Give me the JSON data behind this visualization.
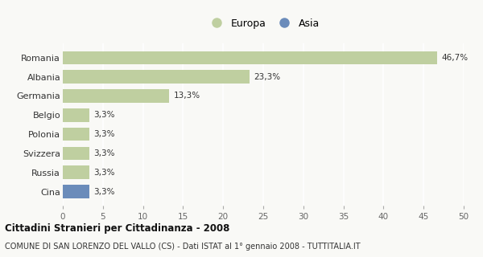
{
  "categories": [
    "Romania",
    "Albania",
    "Germania",
    "Belgio",
    "Polonia",
    "Svizzera",
    "Russia",
    "Cina"
  ],
  "values": [
    46.7,
    23.3,
    13.3,
    3.3,
    3.3,
    3.3,
    3.3,
    3.3
  ],
  "labels": [
    "46,7%",
    "23,3%",
    "13,3%",
    "3,3%",
    "3,3%",
    "3,3%",
    "3,3%",
    "3,3%"
  ],
  "colors": [
    "#bfcfa0",
    "#bfcfa0",
    "#bfcfa0",
    "#bfcfa0",
    "#bfcfa0",
    "#bfcfa0",
    "#bfcfa0",
    "#6b8cba"
  ],
  "europa_color": "#bfcfa0",
  "asia_color": "#6b8cba",
  "background_color": "#f9f9f6",
  "title_bold": "Cittadini Stranieri per Cittadinanza - 2008",
  "subtitle": "COMUNE DI SAN LORENZO DEL VALLO (CS) - Dati ISTAT al 1° gennaio 2008 - TUTTITALIA.IT",
  "xlim": [
    0,
    50
  ],
  "xticks": [
    0,
    5,
    10,
    15,
    20,
    25,
    30,
    35,
    40,
    45,
    50
  ],
  "grid_color": "#ffffff",
  "bar_height": 0.7
}
